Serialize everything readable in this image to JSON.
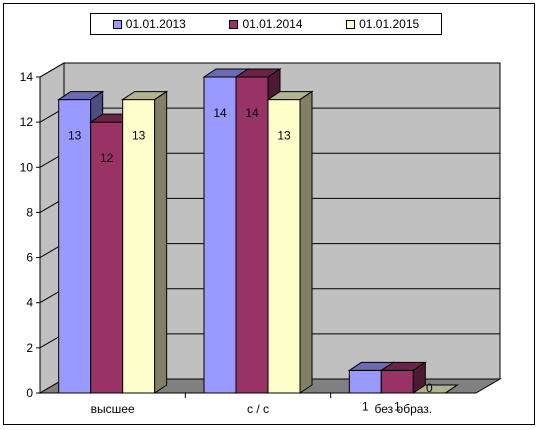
{
  "chart_data": {
    "type": "bar",
    "categories": [
      "высшее",
      "с / с",
      "без образ."
    ],
    "series": [
      {
        "name": "01.01.2013",
        "color": "#9999FF",
        "values": [
          13,
          14,
          1
        ]
      },
      {
        "name": "01.01.2014",
        "color": "#993366",
        "values": [
          12,
          14,
          1
        ]
      },
      {
        "name": "01.01.2015",
        "color": "#FFFFCC",
        "values": [
          13,
          13,
          0
        ]
      }
    ],
    "ylim": [
      0,
      14
    ],
    "yticks": [
      "0",
      "2",
      "4",
      "6",
      "8",
      "10",
      "12",
      "14"
    ],
    "grid": true,
    "legend_position": "top",
    "title": "",
    "xlabel": "",
    "ylabel": "",
    "colors": {
      "wall": "#C0C0C0",
      "floor": "#808080"
    }
  }
}
